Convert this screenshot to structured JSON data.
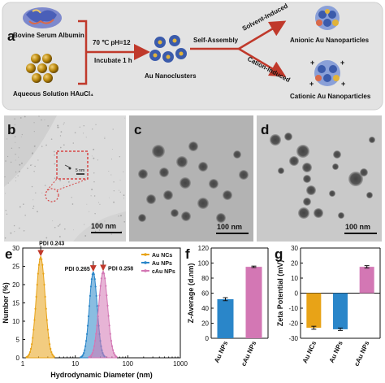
{
  "panel_labels": {
    "a": "a",
    "b": "b",
    "c": "c",
    "d": "d",
    "e": "e",
    "f": "f",
    "g": "g"
  },
  "schematic": {
    "bsa_label": "Bovine Serum Albumin",
    "haucl4_label": "Aqueous Solution HAuCl₄",
    "condition_top": "70 ℃  pH=12",
    "condition_bottom": "Incubate 1 h",
    "clusters_label": "Au Nanoclusters",
    "self_assembly": "Self-Assembly",
    "solvent_induced": "Solvent-Induced",
    "cation_induced": "Cation-Induced",
    "anionic_label": "Anionic Au Nanoparticles",
    "cationic_label": "Cationic Au Nanoparticles",
    "colors": {
      "arrow": "#c0392b",
      "box": "#e0e0e0",
      "particle_gold": "#b8860b",
      "cluster_blue": "#3b5bab"
    }
  },
  "tem": {
    "b": {
      "scale_bar": "100 nm",
      "inset_scale": "5 nm"
    },
    "c": {
      "scale_bar": "100 nm"
    },
    "d": {
      "scale_bar": "100 nm"
    }
  },
  "chart_data": [
    {
      "panel": "e",
      "type": "area",
      "xlabel": "Hydrodynamic Diameter (nm)",
      "ylabel": "Number (%)",
      "xscale": "log",
      "xlim": [
        1,
        1000
      ],
      "ylim": [
        0,
        30
      ],
      "xticks": [
        "1",
        "10",
        "100",
        "1000"
      ],
      "yticks": [
        "0",
        "5",
        "10",
        "15",
        "20",
        "25",
        "30"
      ],
      "legend_position": "top-right",
      "series": [
        {
          "name": "Au NCs",
          "color": "#e8a317",
          "peak_x": 2.2,
          "peak_y": 27.5,
          "width": 0.085,
          "pdi": "PDI 0.243"
        },
        {
          "name": "Au NPs",
          "color": "#2a86c9",
          "peak_x": 22,
          "peak_y": 23.3,
          "width": 0.075,
          "pdi": "PDI 0.265"
        },
        {
          "name": "cAu NPs",
          "color": "#d377b4",
          "peak_x": 34,
          "peak_y": 23.5,
          "width": 0.085,
          "pdi": "PDI 0.258"
        }
      ]
    },
    {
      "panel": "f",
      "type": "bar",
      "categories": [
        "Au NPs",
        "cAu NPs"
      ],
      "values": [
        52,
        95
      ],
      "errors": [
        2,
        1
      ],
      "colors": [
        "#2a86c9",
        "#d377b4"
      ],
      "ylabel": "Z-Average (d.nm)",
      "ylim": [
        0,
        120
      ],
      "yticks": [
        "0",
        "20",
        "40",
        "60",
        "80",
        "100",
        "120"
      ]
    },
    {
      "panel": "g",
      "type": "bar",
      "categories": [
        "Au NCs",
        "Au NPs",
        "cAu NPs"
      ],
      "values": [
        -23,
        -24,
        17.5
      ],
      "errors": [
        1,
        0.8,
        0.8
      ],
      "colors": [
        "#e8a317",
        "#2a86c9",
        "#d377b4"
      ],
      "ylabel": "Zeta Potential (mV)",
      "ylim": [
        -30,
        30
      ],
      "yticks": [
        "-30",
        "-20",
        "-10",
        "0",
        "10",
        "20",
        "30"
      ]
    }
  ]
}
